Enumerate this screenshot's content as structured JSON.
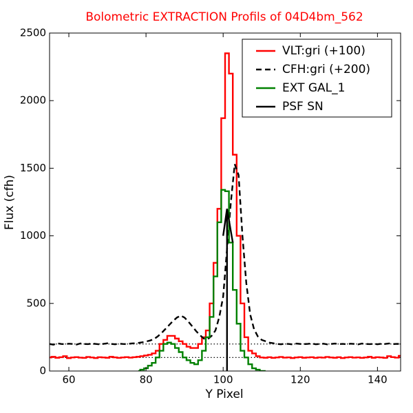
{
  "chart_data": {
    "type": "line",
    "title": "Bolometric EXTRACTION Profils of 04D4bm_562",
    "title_color": "#ff0000",
    "x_label": "Y Pixel",
    "y_label": "Flux (cfh)",
    "xlim": [
      55,
      146
    ],
    "ylim": [
      0,
      2500
    ],
    "xticks": [
      60,
      80,
      100,
      120,
      140
    ],
    "yticks": [
      0,
      500,
      1000,
      1500,
      2000,
      2500
    ],
    "legend": "upper right",
    "reference_lines": [
      100,
      200
    ],
    "series": [
      {
        "name": "VLT:gri (+100)",
        "color": "#ff0000",
        "linestyle": "solid",
        "drawstyle": "steps-mid",
        "x": [
          55,
          56,
          57,
          58,
          59,
          60,
          61,
          62,
          63,
          64,
          65,
          66,
          67,
          68,
          69,
          70,
          71,
          72,
          73,
          74,
          75,
          76,
          77,
          78,
          79,
          80,
          81,
          82,
          83,
          84,
          85,
          86,
          87,
          88,
          89,
          90,
          91,
          92,
          93,
          94,
          95,
          96,
          97,
          98,
          99,
          100,
          101,
          102,
          103,
          104,
          105,
          106,
          107,
          108,
          109,
          110,
          111,
          112,
          113,
          114,
          115,
          116,
          117,
          118,
          119,
          120,
          121,
          122,
          123,
          124,
          125,
          126,
          127,
          128,
          129,
          130,
          131,
          132,
          133,
          134,
          135,
          136,
          137,
          138,
          139,
          140,
          141,
          142,
          143,
          144,
          145,
          146
        ],
        "values": [
          100,
          105,
          98,
          102,
          110,
          95,
          100,
          103,
          99,
          97,
          104,
          100,
          96,
          102,
          100,
          98,
          105,
          101,
          97,
          100,
          103,
          99,
          102,
          105,
          110,
          115,
          120,
          130,
          150,
          200,
          230,
          260,
          260,
          240,
          220,
          200,
          180,
          170,
          170,
          200,
          250,
          300,
          500,
          800,
          1200,
          1870,
          2350,
          2200,
          1600,
          1000,
          500,
          250,
          150,
          130,
          110,
          100,
          98,
          102,
          97,
          100,
          104,
          99,
          101,
          96,
          100,
          103,
          98,
          100,
          102,
          97,
          101,
          99,
          104,
          100,
          98,
          102,
          96,
          100,
          103,
          99,
          101,
          97,
          100,
          105,
          98,
          102,
          100,
          97,
          110,
          103,
          99,
          112
        ]
      },
      {
        "name": "CFH:gri (+200)",
        "color": "#000000",
        "linestyle": "dashed",
        "drawstyle": "default",
        "x": [
          55,
          56,
          57,
          58,
          59,
          60,
          61,
          62,
          63,
          64,
          65,
          66,
          67,
          68,
          69,
          70,
          71,
          72,
          73,
          74,
          75,
          76,
          77,
          78,
          79,
          80,
          81,
          82,
          83,
          84,
          85,
          86,
          87,
          88,
          89,
          90,
          91,
          92,
          93,
          94,
          95,
          96,
          97,
          98,
          99,
          100,
          101,
          102,
          103,
          104,
          105,
          106,
          107,
          108,
          109,
          110,
          111,
          112,
          113,
          114,
          115,
          116,
          117,
          118,
          119,
          120,
          121,
          122,
          123,
          124,
          125,
          126,
          127,
          128,
          129,
          130,
          131,
          132,
          133,
          134,
          135,
          136,
          137,
          138,
          139,
          140,
          141,
          142,
          143,
          144,
          145,
          146
        ],
        "values": [
          200,
          195,
          205,
          200,
          198,
          202,
          200,
          196,
          204,
          200,
          199,
          203,
          200,
          197,
          201,
          205,
          200,
          198,
          202,
          200,
          199,
          203,
          205,
          208,
          212,
          218,
          225,
          235,
          255,
          280,
          310,
          340,
          370,
          395,
          410,
          395,
          365,
          330,
          295,
          265,
          240,
          235,
          260,
          300,
          400,
          550,
          900,
          1250,
          1530,
          1450,
          1000,
          650,
          420,
          310,
          255,
          230,
          220,
          210,
          205,
          200,
          198,
          202,
          200,
          197,
          203,
          200,
          199,
          201,
          204,
          198,
          200,
          202,
          197,
          200,
          203,
          199,
          201,
          198,
          202,
          200,
          197,
          203,
          200,
          199,
          201,
          198,
          202,
          200,
          204,
          199,
          201,
          200
        ]
      },
      {
        "name": "EXT GAL_1",
        "color": "#008000",
        "linestyle": "solid",
        "drawstyle": "steps-mid",
        "x": [
          78,
          79,
          80,
          81,
          82,
          83,
          84,
          85,
          86,
          87,
          88,
          89,
          90,
          91,
          92,
          93,
          94,
          95,
          96,
          97,
          98,
          99,
          100,
          101,
          102,
          103,
          104,
          105,
          106,
          107,
          108,
          109,
          110,
          111
        ],
        "values": [
          0,
          10,
          20,
          40,
          60,
          100,
          150,
          200,
          210,
          200,
          170,
          140,
          100,
          80,
          60,
          50,
          80,
          150,
          250,
          400,
          700,
          1100,
          1340,
          1330,
          950,
          600,
          350,
          150,
          100,
          50,
          20,
          10,
          0,
          0
        ]
      },
      {
        "name": "PSF SN",
        "color": "#000000",
        "linestyle": "solid",
        "drawstyle": "default",
        "x": [
          100,
          101,
          101,
          101,
          102.5
        ],
        "values": [
          1000,
          1200,
          0,
          1200,
          950
        ]
      }
    ]
  }
}
